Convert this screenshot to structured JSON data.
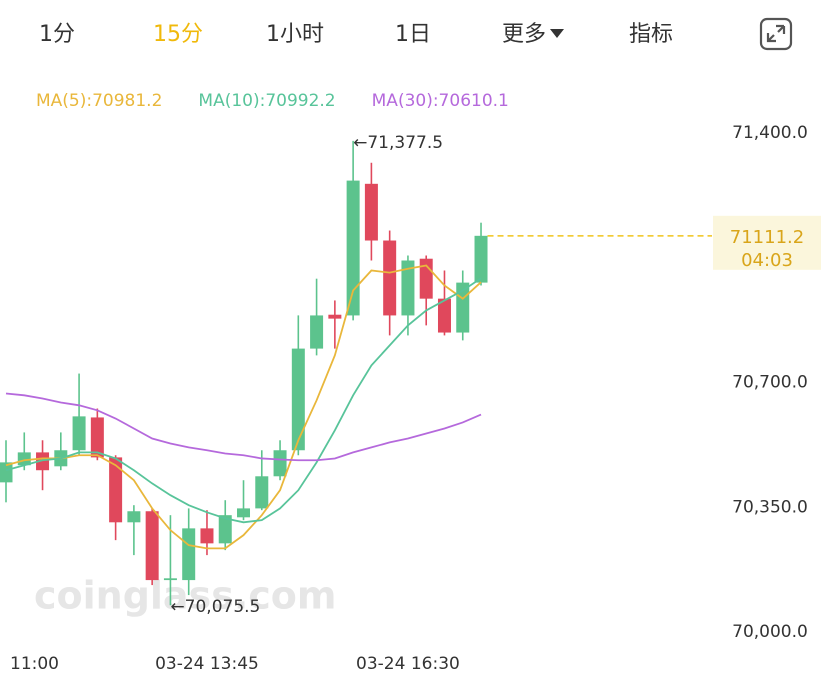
{
  "tabs": [
    "1分",
    "15分",
    "1小时",
    "1日",
    "更多",
    "指标"
  ],
  "active_tab": 1,
  "chart_data": {
    "type": "candlestick",
    "categories": [
      "11:00",
      null,
      null,
      null,
      null,
      null,
      null,
      null,
      null,
      null,
      null,
      "03-24 13:45",
      null,
      null,
      null,
      null,
      null,
      null,
      null,
      null,
      null,
      null,
      "03-24 16:30",
      null,
      null,
      null,
      null
    ],
    "open": [
      70420,
      70468,
      70504,
      70465,
      70510,
      70602,
      70490,
      70308,
      70339,
      70146,
      70146,
      70291,
      70249,
      70322,
      70347,
      70437,
      70510,
      70795,
      70890,
      70888,
      71257,
      71098,
      70888,
      71047,
      70935,
      70840,
      70980
    ],
    "high": [
      70538,
      70560,
      70538,
      70560,
      70725,
      70627,
      70496,
      70356,
      70347,
      70328,
      70347,
      70342,
      70370,
      70426,
      70510,
      70538,
      70888,
      70991,
      70930,
      71377.5,
      71316,
      71126,
      71056,
      71056,
      71014,
      71014,
      71148
    ],
    "low": [
      70364,
      70454,
      70398,
      70454,
      70496,
      70482,
      70258,
      70216,
      70132,
      70075.5,
      70104,
      70216,
      70230,
      70314,
      70342,
      70426,
      70496,
      70776,
      70795,
      70874,
      71042,
      70832,
      70832,
      70860,
      70832,
      70818,
      70972
    ],
    "close": [
      70476,
      70504,
      70454,
      70510,
      70605,
      70490,
      70308,
      70339,
      70146,
      70151,
      70291,
      70249,
      70328,
      70347,
      70437,
      70510,
      70795,
      70888,
      70879,
      71266,
      71098,
      70888,
      71042,
      70935,
      70840,
      70980,
      71111.2
    ],
    "up_color": "#5cc38d",
    "down_color": "#e0485c",
    "series": [
      {
        "name": "MA(5):70981.2",
        "color": "#e9b73b",
        "values": [
          70468,
          70482,
          70487,
          70487,
          70496,
          70496,
          70468,
          70426,
          70347,
          70286,
          70244,
          70235,
          70235,
          70272,
          70328,
          70398,
          70538,
          70650,
          70776,
          70958,
          71014,
          71008,
          71019,
          71028,
          70972,
          70935,
          70981.2
        ]
      },
      {
        "name": "MA(10):70992.2",
        "color": "#58c49a",
        "values": [
          70454,
          70468,
          70482,
          70487,
          70504,
          70504,
          70487,
          70454,
          70417,
          70384,
          70356,
          70336,
          70319,
          70308,
          70314,
          70347,
          70398,
          70476,
          70566,
          70664,
          70748,
          70804,
          70860,
          70902,
          70930,
          70958,
          70992.2
        ]
      },
      {
        "name": "MA(30):70610.1",
        "color": "#b569dc",
        "values": [
          70669,
          70664,
          70655,
          70644,
          70636,
          70622,
          70599,
          70571,
          70543,
          70529,
          70518,
          70510,
          70501,
          70496,
          70487,
          70484,
          70482,
          70482,
          70487,
          70504,
          70518,
          70532,
          70543,
          70557,
          70571,
          70588,
          70610.1
        ]
      }
    ],
    "ylim": [
      69950,
      71520
    ],
    "yticks": [
      {
        "value": 71400,
        "label": "71,400.0"
      },
      {
        "value": 70700,
        "label": "70,700.0"
      },
      {
        "value": 70350,
        "label": "70,350.0"
      },
      {
        "value": 70000,
        "label": "70,000.0"
      }
    ],
    "grid": false,
    "annotations": [
      {
        "label": "←71,377.5",
        "value": 71377.5,
        "at": "high"
      },
      {
        "label": "←70,075.5",
        "value": 70075.5,
        "at": "low"
      }
    ],
    "last_price": 71111.2,
    "countdown": "04:03",
    "watermark": "coinglass.com"
  }
}
